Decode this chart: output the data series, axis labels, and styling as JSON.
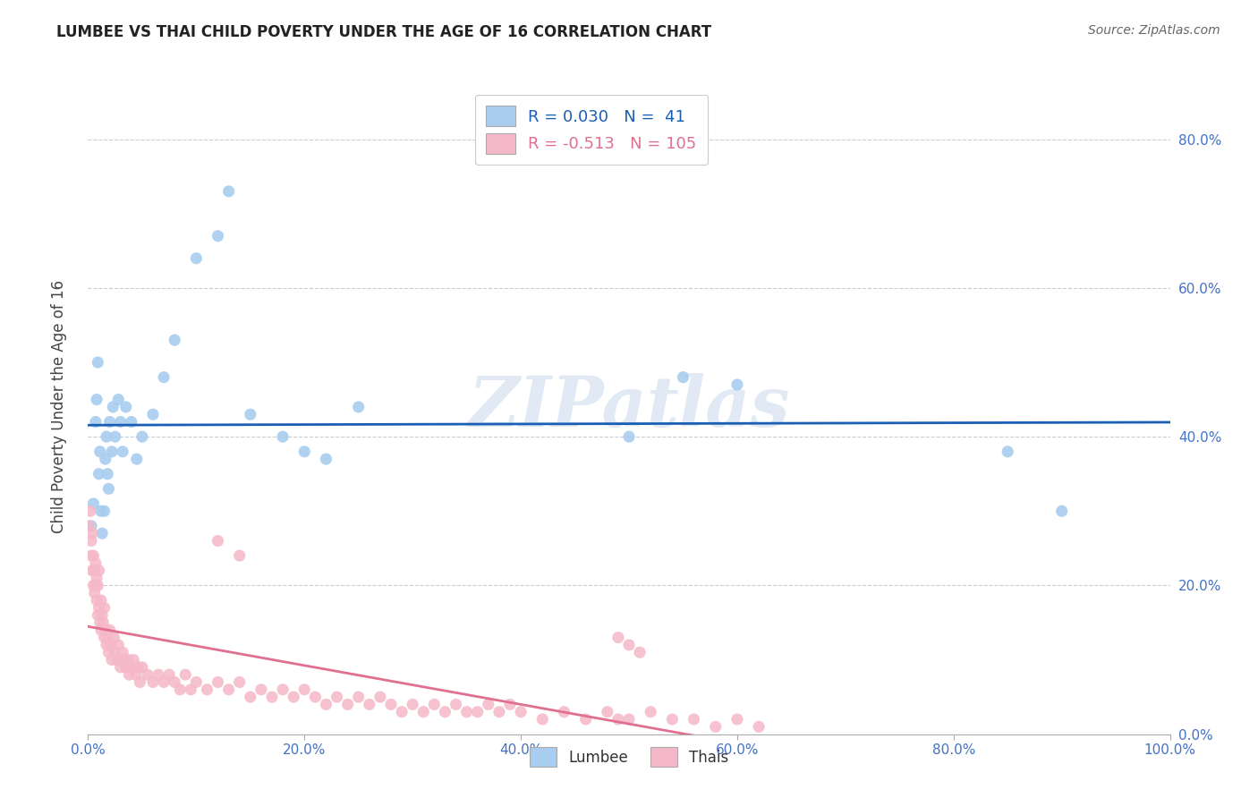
{
  "title": "LUMBEE VS THAI CHILD POVERTY UNDER THE AGE OF 16 CORRELATION CHART",
  "source": "Source: ZipAtlas.com",
  "ylabel": "Child Poverty Under the Age of 16",
  "xlim": [
    0.0,
    1.0
  ],
  "ylim": [
    0.0,
    0.88
  ],
  "x_ticks": [
    0.0,
    0.2,
    0.4,
    0.6,
    0.8,
    1.0
  ],
  "x_tick_labels": [
    "0.0%",
    "20.0%",
    "40.0%",
    "60.0%",
    "80.0%",
    "100.0%"
  ],
  "y_ticks": [
    0.0,
    0.2,
    0.4,
    0.6,
    0.8
  ],
  "y_tick_labels": [
    "0.0%",
    "20.0%",
    "40.0%",
    "60.0%",
    "80.0%"
  ],
  "lumbee_R": 0.03,
  "lumbee_N": 41,
  "thai_R": -0.513,
  "thai_N": 105,
  "lumbee_color": "#A8CDEF",
  "thai_color": "#F5B8C8",
  "lumbee_line_color": "#1A5FB4",
  "thai_line_color": "#E07090",
  "tick_color": "#4472C4",
  "watermark": "ZIPatlas",
  "lumbee_x": [
    0.003,
    0.005,
    0.007,
    0.008,
    0.009,
    0.01,
    0.011,
    0.012,
    0.013,
    0.015,
    0.016,
    0.017,
    0.018,
    0.019,
    0.02,
    0.022,
    0.023,
    0.025,
    0.028,
    0.03,
    0.032,
    0.035,
    0.04,
    0.045,
    0.05,
    0.06,
    0.07,
    0.08,
    0.1,
    0.12,
    0.13,
    0.15,
    0.18,
    0.2,
    0.22,
    0.25,
    0.5,
    0.55,
    0.6,
    0.85,
    0.9
  ],
  "lumbee_y": [
    0.28,
    0.31,
    0.42,
    0.45,
    0.5,
    0.35,
    0.38,
    0.3,
    0.27,
    0.3,
    0.37,
    0.4,
    0.35,
    0.33,
    0.42,
    0.38,
    0.44,
    0.4,
    0.45,
    0.42,
    0.38,
    0.44,
    0.42,
    0.37,
    0.4,
    0.43,
    0.48,
    0.53,
    0.64,
    0.67,
    0.73,
    0.43,
    0.4,
    0.38,
    0.37,
    0.44,
    0.4,
    0.48,
    0.47,
    0.38,
    0.3
  ],
  "thai_x": [
    0.001,
    0.002,
    0.003,
    0.003,
    0.004,
    0.004,
    0.005,
    0.005,
    0.006,
    0.006,
    0.007,
    0.007,
    0.008,
    0.008,
    0.009,
    0.009,
    0.01,
    0.01,
    0.011,
    0.012,
    0.012,
    0.013,
    0.014,
    0.015,
    0.015,
    0.016,
    0.017,
    0.018,
    0.019,
    0.02,
    0.021,
    0.022,
    0.024,
    0.025,
    0.027,
    0.028,
    0.03,
    0.032,
    0.033,
    0.035,
    0.037,
    0.038,
    0.04,
    0.042,
    0.044,
    0.046,
    0.048,
    0.05,
    0.055,
    0.06,
    0.065,
    0.07,
    0.075,
    0.08,
    0.085,
    0.09,
    0.095,
    0.1,
    0.11,
    0.12,
    0.13,
    0.14,
    0.15,
    0.16,
    0.17,
    0.18,
    0.19,
    0.2,
    0.21,
    0.22,
    0.23,
    0.24,
    0.25,
    0.26,
    0.27,
    0.28,
    0.29,
    0.3,
    0.31,
    0.32,
    0.33,
    0.34,
    0.35,
    0.36,
    0.37,
    0.38,
    0.39,
    0.4,
    0.42,
    0.44,
    0.46,
    0.48,
    0.49,
    0.5,
    0.52,
    0.54,
    0.56,
    0.58,
    0.6,
    0.62,
    0.5,
    0.51,
    0.49,
    0.12,
    0.14
  ],
  "thai_y": [
    0.28,
    0.3,
    0.26,
    0.24,
    0.22,
    0.27,
    0.2,
    0.24,
    0.22,
    0.19,
    0.2,
    0.23,
    0.18,
    0.21,
    0.16,
    0.2,
    0.17,
    0.22,
    0.15,
    0.14,
    0.18,
    0.16,
    0.15,
    0.13,
    0.17,
    0.14,
    0.12,
    0.13,
    0.11,
    0.14,
    0.12,
    0.1,
    0.13,
    0.11,
    0.1,
    0.12,
    0.09,
    0.11,
    0.1,
    0.09,
    0.1,
    0.08,
    0.09,
    0.1,
    0.08,
    0.09,
    0.07,
    0.09,
    0.08,
    0.07,
    0.08,
    0.07,
    0.08,
    0.07,
    0.06,
    0.08,
    0.06,
    0.07,
    0.06,
    0.07,
    0.06,
    0.07,
    0.05,
    0.06,
    0.05,
    0.06,
    0.05,
    0.06,
    0.05,
    0.04,
    0.05,
    0.04,
    0.05,
    0.04,
    0.05,
    0.04,
    0.03,
    0.04,
    0.03,
    0.04,
    0.03,
    0.04,
    0.03,
    0.03,
    0.04,
    0.03,
    0.04,
    0.03,
    0.02,
    0.03,
    0.02,
    0.03,
    0.02,
    0.02,
    0.03,
    0.02,
    0.02,
    0.01,
    0.02,
    0.01,
    0.12,
    0.11,
    0.13,
    0.26,
    0.24
  ]
}
